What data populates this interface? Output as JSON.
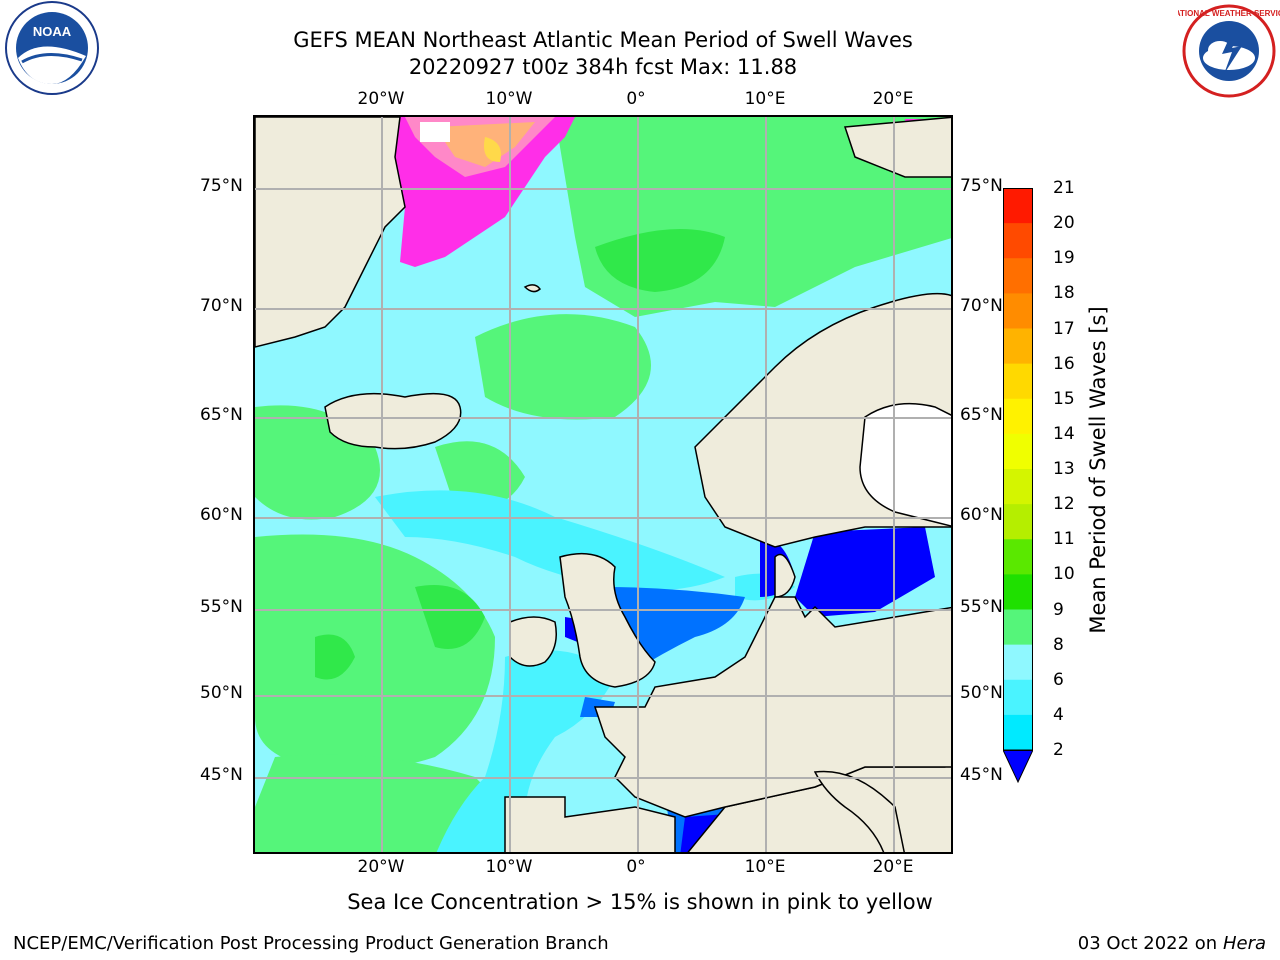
{
  "header": {
    "title_line1": "GEFS MEAN Northeast Atlantic Mean Period of Swell Waves",
    "title_line2": "20220927 t00z 384h fcst   Max: 11.88"
  },
  "logos": {
    "left": {
      "icon": "noaa-logo",
      "text": "NOAA"
    },
    "right": {
      "icon": "nws-logo",
      "text": "NATIONAL WEATHER SERVICE"
    }
  },
  "map": {
    "lat_labels": [
      "75°N",
      "70°N",
      "65°N",
      "60°N",
      "55°N",
      "50°N",
      "45°N"
    ],
    "lon_labels": [
      "20°W",
      "10°W",
      "0°",
      "10°E",
      "20°E"
    ],
    "colors": {
      "land": "#efecdc",
      "ocean_base": "#8ff8ff",
      "grid": "#b0b0b0",
      "coast": "#000000"
    }
  },
  "colorbar": {
    "title": "Mean Period of Swell Waves [s]",
    "ticks": [
      "21",
      "20",
      "19",
      "18",
      "17",
      "16",
      "15",
      "14",
      "13",
      "12",
      "11",
      "10",
      "9",
      "8",
      "6",
      "4",
      "2"
    ],
    "colors": [
      "#ff1a00",
      "#ff4a00",
      "#ff6f00",
      "#ff8c00",
      "#ffb300",
      "#ffd900",
      "#fff200",
      "#f0ff00",
      "#d4f500",
      "#b5ee00",
      "#5ae800",
      "#1fe000",
      "#55f57a",
      "#8ff8ff",
      "#4af3ff",
      "#00eaff",
      "#0072ff"
    ],
    "underflow_color": "#0000ff"
  },
  "caption": "Sea Ice Concentration > 15% is shown in pink to yellow",
  "footer": {
    "left": "NCEP/EMC/Verification Post Processing Product Generation Branch",
    "right_date": "03 Oct 2022 on ",
    "right_host": "Hera"
  }
}
